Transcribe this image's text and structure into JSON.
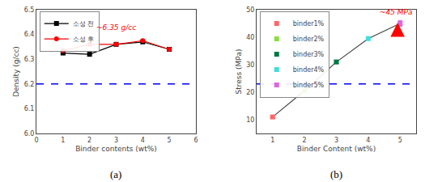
{
  "chart_data": [
    {
      "type": "line",
      "subtitle": "(a)",
      "xlabel": "Binder contents (wt%)",
      "ylabel": "Density (g/cc)",
      "x": [
        1,
        2,
        3,
        4,
        5
      ],
      "series": [
        {
          "name": "소성 전",
          "color": "black",
          "marker": "square",
          "values": [
            6.325,
            6.32,
            6.36,
            6.37,
            6.34
          ]
        },
        {
          "name": "소성 후",
          "color": "red",
          "marker": "circle",
          "values": [
            6.335,
            6.36,
            6.36,
            6.375,
            6.34
          ]
        }
      ],
      "reference_line": {
        "y": 6.2,
        "color": "blue",
        "line_style": "dashed"
      },
      "annotations": [
        {
          "text": "~6.35 g/cc",
          "x": 2.2,
          "y": 6.405,
          "color": "red"
        }
      ],
      "xlim": [
        0,
        6
      ],
      "ylim": [
        6.0,
        6.5
      ],
      "xticks": [
        0,
        1,
        2,
        3,
        4,
        5,
        6
      ],
      "yticks": [
        {
          "value": 6.0,
          "label": "6.0"
        },
        {
          "value": 6.1,
          "label": "6.1"
        },
        {
          "value": 6.2,
          "label": "6.2"
        },
        {
          "value": 6.3,
          "label": "6.3"
        },
        {
          "value": 6.4,
          "label": "6.4"
        },
        {
          "value": 6.5,
          "label": "6.5"
        }
      ],
      "grid": false,
      "legend": "upper left"
    },
    {
      "type": "scatter",
      "subtitle": "(b)",
      "xlabel": "Binder Content (wt%)",
      "ylabel": "Stress (MPa)",
      "x": [
        1,
        2,
        3,
        4,
        5
      ],
      "values": [
        11,
        20.5,
        31,
        39.5,
        45
      ],
      "errors": [
        0.4,
        0.4,
        0.6,
        0.6,
        1.0
      ],
      "labels": [
        "binder1%",
        "binder2%",
        "binder3%",
        "binder4%",
        "binder5%"
      ],
      "colors": [
        "#ff6666",
        "#88dd44",
        "#007744",
        "#44dddd",
        "#dd66dd"
      ],
      "color": "#444444",
      "marker": "square",
      "reference_line": {
        "y": 23,
        "color": "blue",
        "line_style": "dashed"
      },
      "annotations": [
        {
          "text": "~45 MPa",
          "x": 4.3,
          "y": 47.2,
          "color": "red"
        }
      ],
      "arrow": {
        "x": 4.92,
        "y_from": 40.0,
        "y_to": 45.3,
        "color": "red"
      },
      "xlim": [
        0.5,
        5.5
      ],
      "ylim": [
        5,
        50
      ],
      "xticks": [
        1,
        2,
        3,
        4,
        5
      ],
      "yticks": [
        10,
        20,
        30,
        40,
        50
      ],
      "grid": false,
      "legend": "upper left"
    }
  ]
}
